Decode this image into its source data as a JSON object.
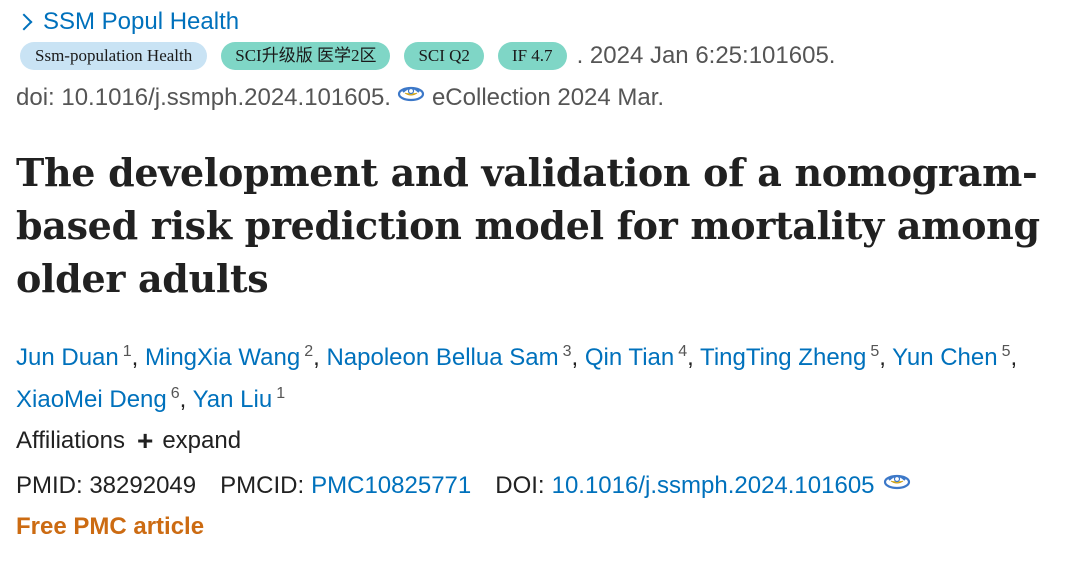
{
  "citation": {
    "journal_link": "SSM Popul Health",
    "badges": {
      "journal_full": "Ssm-population Health",
      "sci_rank": "SCI升级版 医学2区",
      "sci_quartile": "SCI Q2",
      "impact_factor": "IF 4.7"
    },
    "date_volume": ". 2024 Jan 6:25:101605.",
    "doi_text": "doi: 10.1016/j.ssmph.2024.101605.",
    "ecollection": "eCollection 2024 Mar."
  },
  "article": {
    "title": "The development and validation of a nomogram-based risk prediction model for mortality among older adults"
  },
  "authors": [
    {
      "name": "Jun Duan",
      "aff": "1"
    },
    {
      "name": "MingXia Wang",
      "aff": "2"
    },
    {
      "name": "Napoleon Bellua Sam",
      "aff": "3"
    },
    {
      "name": "Qin Tian",
      "aff": "4"
    },
    {
      "name": "TingTing Zheng",
      "aff": "5"
    },
    {
      "name": "Yun Chen",
      "aff": "5"
    },
    {
      "name": "XiaoMei Deng",
      "aff": "6"
    },
    {
      "name": "Yan Liu",
      "aff": "1"
    }
  ],
  "affiliations": {
    "label": "Affiliations",
    "expand_label": "expand"
  },
  "identifiers": {
    "pmid_label": "PMID: 38292049",
    "pmcid_label": "PMCID:",
    "pmcid_value": "PMC10825771",
    "doi_label": "DOI:",
    "doi_value": "10.1016/j.ssmph.2024.101605"
  },
  "free_pmc": "Free PMC article",
  "icons": {
    "chevron": "chevron-right-icon",
    "doi_logo": "scihub-logo-icon",
    "expand": "plus-icon"
  },
  "colors": {
    "link": "#0071bc",
    "badge_journal": "#c9e3f4",
    "badge_teal": "#7fd6c6",
    "free_pmc": "#cc6b12"
  }
}
